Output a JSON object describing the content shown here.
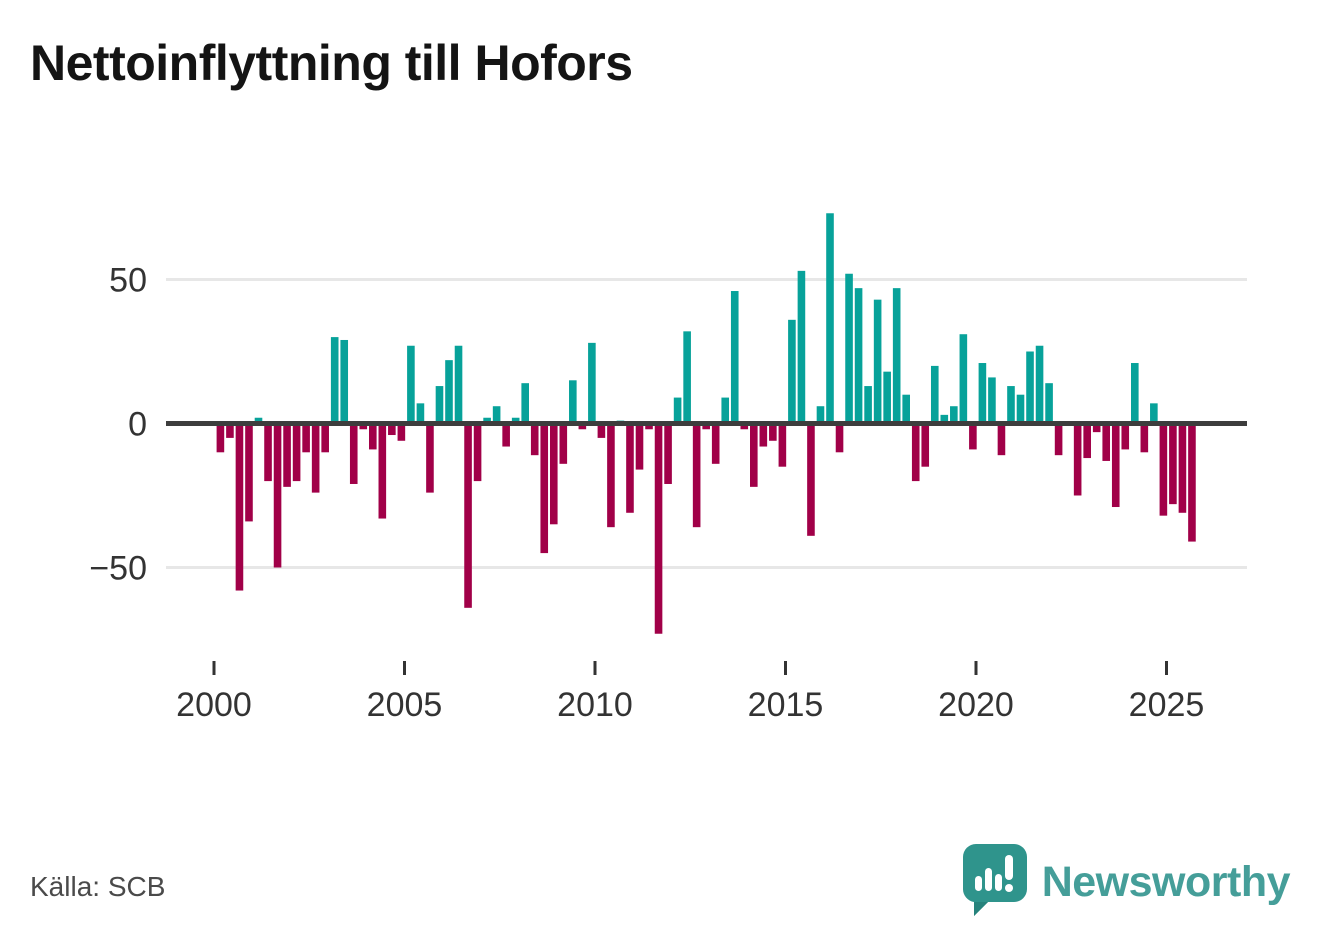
{
  "title": "Nettoinflyttning till Hofors",
  "source": "Källa: SCB",
  "logo": {
    "text": "Newsworthy"
  },
  "chart_data": {
    "type": "bar",
    "title": "Nettoinflyttning till Hofors",
    "period": "quarterly",
    "start": "2000-Q1",
    "end": "2025-Q3",
    "x_tick_labels": [
      "2000",
      "2005",
      "2010",
      "2015",
      "2020",
      "2025"
    ],
    "y_tick_values": [
      50,
      0,
      -50
    ],
    "y_tick_labels": [
      "50",
      "0",
      "−50"
    ],
    "ylim": [
      -80,
      80
    ],
    "grid": "horizontal",
    "legend": "none",
    "colors": {
      "positive": "#07a29a",
      "negative": "#a10048",
      "axis": "#3d3d3d",
      "grid": "#e7e7e7",
      "tick_text": "#333333"
    },
    "series": [
      {
        "name": "Nettoinflyttning",
        "values": [
          -10,
          -5,
          -58,
          -34,
          2,
          -20,
          -50,
          -22,
          -20,
          -10,
          -24,
          -10,
          30,
          29,
          -21,
          -2,
          -9,
          -33,
          -4,
          -6,
          27,
          7,
          -24,
          13,
          22,
          27,
          -64,
          -20,
          2,
          6,
          -8,
          2,
          14,
          -11,
          -45,
          -35,
          -14,
          15,
          -2,
          28,
          -5,
          -36,
          1,
          -31,
          -16,
          -2,
          -73,
          -21,
          9,
          32,
          -36,
          -2,
          -14,
          9,
          46,
          -2,
          -22,
          -8,
          -6,
          -15,
          36,
          53,
          -39,
          6,
          73,
          -10,
          52,
          47,
          13,
          43,
          18,
          47,
          10,
          -20,
          -15,
          20,
          3,
          6,
          31,
          -9,
          21,
          16,
          -11,
          13,
          10,
          25,
          27,
          14,
          -11,
          0,
          -25,
          -12,
          -3,
          -13,
          -29,
          -9,
          21,
          -10,
          7,
          -32,
          -28,
          -31,
          -41
        ]
      }
    ]
  }
}
